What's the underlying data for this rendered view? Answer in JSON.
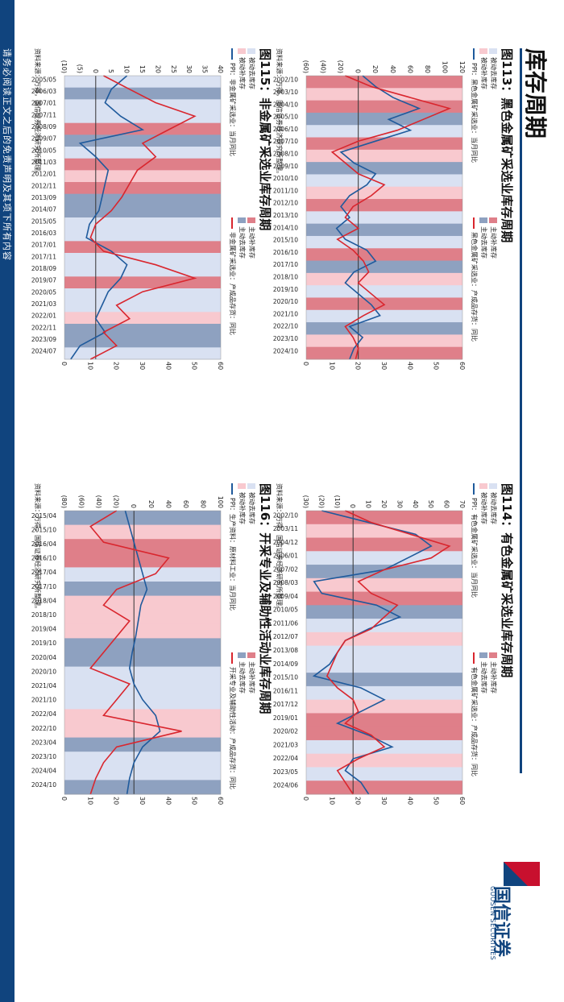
{
  "page": {
    "title": "库存周期",
    "disclaimer": "请务必阅读正文之后的免责声明及其项下所有内容",
    "logo_cn": "国信证券",
    "logo_en": "GUOSEN SECURITIES"
  },
  "colors": {
    "brand": "#10447e",
    "passive_destock": "#d9e1f2",
    "passive_restock": "#f8c9cf",
    "active_destock": "#8ea1c0",
    "active_restock": "#df7f89",
    "blue_line": "#1f5a9c",
    "red_line": "#d9262e"
  },
  "phase_labels": {
    "passive_destock": "被动去库存",
    "passive_restock": "被动补库存",
    "active_destock": "主动去库存",
    "active_restock": "主动补库存"
  },
  "source_text": "资料来源：万得，国信证券经济研究所整理。",
  "chart_data": [
    {
      "type": "line",
      "title": "图113：黑色金属矿采选业库存周期",
      "series": [
        {
          "name": "PPI：黑色金属矿采选业：当月同比",
          "axis": "left",
          "values": [
            5,
            20,
            40,
            70,
            35,
            60,
            20,
            -20,
            -5,
            20,
            10,
            -10,
            -20,
            -10,
            -25,
            -15,
            10,
            20,
            -5,
            -15,
            0,
            15,
            25,
            -10,
            5,
            -5,
            -10
          ]
        },
        {
          "name": "黑色金属矿采选业：产成品存货：同比",
          "axis": "right",
          "values": [
            15,
            25,
            40,
            55,
            45,
            35,
            20,
            10,
            15,
            20,
            30,
            25,
            18,
            15,
            20,
            12,
            18,
            22,
            24,
            20,
            25,
            30,
            22,
            15,
            18,
            20,
            19
          ]
        }
      ],
      "x_ticks": [
        "2002/10",
        "2003/10",
        "2004/10",
        "2005/10",
        "2006/10",
        "2007/10",
        "2008/10",
        "2009/10",
        "2010/10",
        "2011/10",
        "2012/10",
        "2013/10",
        "2014/10",
        "2015/10",
        "2016/10",
        "2017/10",
        "2018/10",
        "2019/10",
        "2020/10",
        "2021/10",
        "2022/10",
        "2023/10",
        "2024/10"
      ],
      "left_ticks": [
        "120",
        "100",
        "80",
        "60",
        "40",
        "20",
        "0",
        "(20)",
        "(40)",
        "(60)"
      ],
      "left_range": [
        -60,
        120
      ],
      "right_ticks": [
        "0",
        "10",
        "20",
        "30",
        "40",
        "50",
        "60"
      ],
      "right_range": [
        0,
        60
      ],
      "phases": [
        "active_restock",
        "passive_restock",
        "active_restock",
        "active_destock",
        "passive_destock",
        "active_restock",
        "passive_restock",
        "active_destock",
        "passive_destock",
        "passive_restock",
        "active_restock",
        "passive_destock",
        "active_destock",
        "passive_destock",
        "active_restock",
        "active_destock",
        "passive_restock",
        "passive_destock",
        "active_restock",
        "passive_destock",
        "active_destock",
        "passive_restock",
        "active_restock"
      ]
    },
    {
      "type": "line",
      "title": "图114：有色金属矿采选业库存周期",
      "series": [
        {
          "name": "PPI：有色金属矿采选业：当月同比",
          "axis": "left",
          "values": [
            -20,
            10,
            40,
            50,
            35,
            20,
            -25,
            -20,
            15,
            30,
            10,
            -5,
            -10,
            -15,
            -25,
            5,
            20,
            5,
            -10,
            10,
            25,
            0,
            -5,
            5,
            10
          ]
        },
        {
          "name": "有色金属矿采选业：产成品存货：同比",
          "axis": "right",
          "values": [
            15,
            25,
            40,
            55,
            48,
            30,
            20,
            25,
            35,
            30,
            25,
            15,
            12,
            10,
            8,
            12,
            18,
            20,
            15,
            25,
            30,
            20,
            12,
            15,
            18
          ]
        }
      ],
      "x_ticks": [
        "2002/10",
        "2003/11",
        "2004/12",
        "2006/01",
        "2007/02",
        "2008/03",
        "2009/04",
        "2010/05",
        "2011/06",
        "2012/07",
        "2013/08",
        "2014/09",
        "2015/10",
        "2016/11",
        "2017/12",
        "2019/01",
        "2020/02",
        "2021/03",
        "2022/04",
        "2023/05",
        "2024/06"
      ],
      "left_ticks": [
        "70",
        "60",
        "50",
        "40",
        "30",
        "20",
        "10",
        "0",
        "(10)",
        "(20)",
        "(30)"
      ],
      "left_range": [
        -30,
        70
      ],
      "right_ticks": [
        "0",
        "10",
        "20",
        "30",
        "40",
        "50",
        "60"
      ],
      "right_range": [
        0,
        60
      ],
      "phases": [
        "active_restock",
        "passive_restock",
        "active_restock",
        "passive_destock",
        "active_destock",
        "passive_restock",
        "active_restock",
        "active_destock",
        "passive_destock",
        "passive_restock",
        "passive_destock",
        "passive_destock",
        "active_destock",
        "passive_destock",
        "passive_restock",
        "active_restock",
        "active_restock",
        "passive_destock",
        "passive_restock",
        "passive_destock",
        "active_restock"
      ]
    },
    {
      "type": "line",
      "title": "图115：非金属矿采选业库存周期",
      "series": [
        {
          "name": "PPI：非金属矿采选业：当月同比",
          "axis": "left",
          "values": [
            10,
            5,
            3,
            8,
            15,
            -5,
            0,
            4,
            3,
            2,
            1,
            -2,
            -3,
            5,
            10,
            8,
            4,
            2,
            0,
            3,
            -5,
            -8
          ]
        },
        {
          "name": "非金属矿采选业：产成品存货：同比",
          "axis": "right",
          "values": [
            15,
            25,
            35,
            50,
            40,
            30,
            35,
            28,
            25,
            22,
            18,
            12,
            10,
            15,
            35,
            50,
            30,
            20,
            25,
            15,
            20,
            10
          ]
        }
      ],
      "x_ticks": [
        "2005/05",
        "2006/03",
        "2007/01",
        "2007/11",
        "2008/09",
        "2009/07",
        "2010/05",
        "2011/03",
        "2012/01",
        "2012/11",
        "2013/09",
        "2014/07",
        "2015/05",
        "2016/03",
        "2017/01",
        "2017/11",
        "2018/09",
        "2019/07",
        "2020/05",
        "2021/03",
        "2022/01",
        "2022/11",
        "2023/09",
        "2024/07"
      ],
      "left_ticks": [
        "40",
        "35",
        "30",
        "25",
        "20",
        "15",
        "10",
        "5",
        "0",
        "(5)",
        "(10)"
      ],
      "left_range": [
        -10,
        40
      ],
      "right_ticks": [
        "0",
        "10",
        "20",
        "30",
        "40",
        "50",
        "60"
      ],
      "right_range": [
        0,
        60
      ],
      "phases": [
        "passive_destock",
        "active_destock",
        "passive_destock",
        "passive_destock",
        "active_restock",
        "active_destock",
        "passive_destock",
        "active_restock",
        "passive_restock",
        "active_restock",
        "active_destock",
        "active_destock",
        "passive_destock",
        "passive_destock",
        "active_restock",
        "passive_destock",
        "passive_destock",
        "active_restock",
        "passive_destock",
        "passive_destock",
        "passive_restock",
        "active_destock",
        "active_destock",
        "passive_destock"
      ]
    },
    {
      "type": "line",
      "title": "图116：开采专业及辅助性活动业库存周期",
      "series": [
        {
          "name": "PPI：生产资料：原材料工业：当月同比",
          "axis": "left",
          "values": [
            -10,
            -5,
            0,
            5,
            10,
            15,
            8,
            5,
            2,
            -2,
            -5,
            0,
            10,
            25,
            30,
            10,
            0,
            -5,
            -8
          ]
        },
        {
          "name": "开采专业及辅助性活动：产成品存货：同比",
          "axis": "right",
          "values": [
            20,
            10,
            15,
            40,
            35,
            20,
            15,
            25,
            20,
            15,
            10,
            25,
            20,
            15,
            45,
            20,
            15,
            12,
            10
          ]
        }
      ],
      "x_ticks": [
        "2015/04",
        "2015/10",
        "2016/04",
        "2016/10",
        "2017/04",
        "2017/10",
        "2018/04",
        "2018/10",
        "2019/04",
        "2019/10",
        "2020/04",
        "2020/10",
        "2021/04",
        "2021/10",
        "2022/04",
        "2022/10",
        "2023/04",
        "2023/10",
        "2024/04",
        "2024/10"
      ],
      "left_ticks": [
        "100",
        "80",
        "60",
        "40",
        "20",
        "0",
        "(20)",
        "(40)",
        "(60)",
        "(80)"
      ],
      "left_range": [
        -80,
        100
      ],
      "right_ticks": [
        "0",
        "10",
        "20",
        "30",
        "40",
        "50",
        "60"
      ],
      "right_range": [
        0,
        60
      ],
      "phases": [
        "active_destock",
        "passive_restock",
        "active_restock",
        "active_restock",
        "passive_destock",
        "active_destock",
        "passive_restock",
        "passive_restock",
        "passive_restock",
        "active_destock",
        "active_destock",
        "passive_destock",
        "passive_destock",
        "passive_destock",
        "passive_restock",
        "passive_restock",
        "active_destock",
        "passive_destock",
        "passive_destock",
        "active_destock"
      ]
    }
  ]
}
